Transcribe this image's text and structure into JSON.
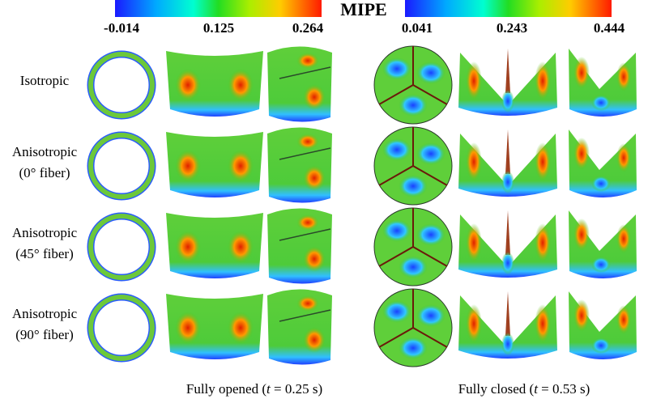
{
  "colorbar_label": "MIPE",
  "colorbars": [
    {
      "ticks": [
        "-0.014",
        "0.125",
        "0.264"
      ]
    },
    {
      "ticks": [
        "0.041",
        "0.243",
        "0.444"
      ]
    }
  ],
  "rows": [
    {
      "label": [
        "Isotropic"
      ]
    },
    {
      "label": [
        "Anisotropic",
        "(0° fiber)"
      ]
    },
    {
      "label": [
        "Anisotropic",
        "(45° fiber)"
      ]
    },
    {
      "label": [
        "Anisotropic",
        "(90° fiber)"
      ]
    }
  ],
  "captions": [
    {
      "text": "Fully opened (",
      "variable": "t",
      "rest": " = 0.25 s)"
    },
    {
      "text": "Fully closed (",
      "variable": "t",
      "rest": " = 0.53 s)"
    }
  ]
}
